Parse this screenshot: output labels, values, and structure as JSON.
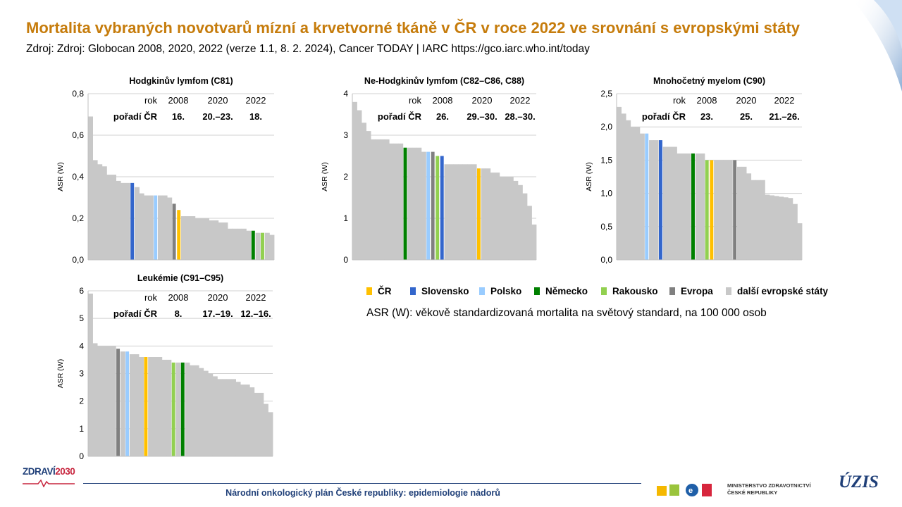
{
  "slide": {
    "title": "Mortalita vybraných novotvarů mízní a krvetvorné tkáně v ČR v roce 2022 ve srovnání s evropskými státy",
    "subtitle": "Zdroj: Zdroj: Globocan 2008, 2020, 2022 (verze 1.1, 8. 2. 2024), Cancer TODAY | IARC https://gco.iarc.who.int/today"
  },
  "colors": {
    "CZ": "#FFC000",
    "SK": "#3366CC",
    "PL": "#99CCFF",
    "DE": "#008000",
    "AT": "#92D050",
    "EU": "#808080",
    "other": "#C8C8C8",
    "title": "#C67C0C",
    "footer": "#1F3F78"
  },
  "legend": [
    {
      "key": "CZ",
      "label": "ČR"
    },
    {
      "key": "SK",
      "label": "Slovensko"
    },
    {
      "key": "PL",
      "label": "Polsko"
    },
    {
      "key": "DE",
      "label": "Německo"
    },
    {
      "key": "AT",
      "label": "Rakousko"
    },
    {
      "key": "EU",
      "label": "Evropa"
    },
    {
      "key": "other",
      "label": "další evropské státy"
    }
  ],
  "note": "ASR (W): věkově standardizovaná mortalita na světový standard, na 100 000 osob",
  "footer": {
    "text": "Národní onkologický plán České republiky: epidemiologie nádorů",
    "logo_zdravi_a": "ZDRAVÍ",
    "logo_zdravi_b": "2030",
    "ministry_line1": "MINISTERSTVO ZDRAVOTNICTVÍ",
    "ministry_line2": "ČESKÉ REPUBLIKY",
    "uzis": "ÚZIS"
  },
  "chart_data": [
    {
      "type": "bar",
      "title": "Hodgkinův lymfom (C81)",
      "ylabel": "ASR (W)",
      "ylim": [
        0,
        0.8
      ],
      "yticks": [
        "0,0",
        "0,2",
        "0,4",
        "0,6",
        "0,8"
      ],
      "rank_table": {
        "row_label": "rok",
        "rank_label": "pořadí ČR",
        "years": [
          "2008",
          "2020",
          "2022"
        ],
        "ranks": [
          "16.",
          "20.–23.",
          "18."
        ]
      },
      "categories": [
        "c01",
        "c02",
        "c03",
        "c04",
        "c05",
        "c06",
        "c07",
        "c08",
        "c09",
        "c10",
        "c11",
        "c12",
        "c13",
        "c14",
        "c15",
        "c16",
        "c17",
        "c18",
        "c19",
        "c20",
        "c21",
        "c22",
        "c23",
        "c24",
        "c25",
        "c26",
        "c27",
        "c28",
        "c29",
        "c30",
        "c31",
        "c32",
        "c33",
        "c34",
        "c35",
        "c36",
        "c37",
        "c38",
        "c39",
        "c40"
      ],
      "highlight": {
        "c10": "SK",
        "c15": "PL",
        "c19": "EU",
        "c20": "CZ",
        "c36": "DE",
        "c38": "AT"
      },
      "values": [
        0.69,
        0.48,
        0.46,
        0.45,
        0.41,
        0.41,
        0.38,
        0.37,
        0.37,
        0.37,
        0.35,
        0.32,
        0.31,
        0.31,
        0.31,
        0.31,
        0.31,
        0.3,
        0.27,
        0.24,
        0.21,
        0.21,
        0.21,
        0.2,
        0.2,
        0.2,
        0.19,
        0.19,
        0.18,
        0.18,
        0.15,
        0.15,
        0.15,
        0.15,
        0.14,
        0.14,
        0.13,
        0.13,
        0.13,
        0.12
      ]
    },
    {
      "type": "bar",
      "title": "Ne-Hodgkinův lymfom (C82–C86, C88)",
      "ylabel": "ASR (W)",
      "ylim": [
        0,
        4
      ],
      "yticks": [
        "0",
        "1",
        "2",
        "3",
        "4"
      ],
      "rank_table": {
        "row_label": "rok",
        "rank_label": "pořadí ČR",
        "years": [
          "2008",
          "2020",
          "2022"
        ],
        "ranks": [
          "26.",
          "29.–30.",
          "28.–30."
        ]
      },
      "categories": [
        "c01",
        "c02",
        "c03",
        "c04",
        "c05",
        "c06",
        "c07",
        "c08",
        "c09",
        "c10",
        "c11",
        "c12",
        "c13",
        "c14",
        "c15",
        "c16",
        "c17",
        "c18",
        "c19",
        "c20",
        "c21",
        "c22",
        "c23",
        "c24",
        "c25",
        "c26",
        "c27",
        "c28",
        "c29",
        "c30",
        "c31",
        "c32",
        "c33",
        "c34",
        "c35",
        "c36",
        "c37",
        "c38",
        "c39",
        "c40"
      ],
      "highlight": {
        "c12": "DE",
        "c17": "PL",
        "c18": "EU",
        "c19": "AT",
        "c20": "SK",
        "c28": "CZ"
      },
      "values": [
        3.8,
        3.6,
        3.3,
        3.1,
        2.9,
        2.9,
        2.9,
        2.9,
        2.8,
        2.8,
        2.8,
        2.7,
        2.7,
        2.7,
        2.7,
        2.6,
        2.6,
        2.6,
        2.5,
        2.5,
        2.3,
        2.3,
        2.3,
        2.3,
        2.3,
        2.3,
        2.3,
        2.2,
        2.2,
        2.2,
        2.1,
        2.1,
        2.0,
        2.0,
        2.0,
        1.9,
        1.8,
        1.6,
        1.3,
        0.85
      ]
    },
    {
      "type": "bar",
      "title": "Mnohočetný myelom (C90)",
      "ylabel": "ASR (W)",
      "ylim": [
        0,
        2.5
      ],
      "yticks": [
        "0,0",
        "0,5",
        "1,0",
        "1,5",
        "2,0",
        "2,5"
      ],
      "rank_table": {
        "row_label": "rok",
        "rank_label": "pořadí ČR",
        "years": [
          "2008",
          "2020",
          "2022"
        ],
        "ranks": [
          "23.",
          "25.",
          "21.–26."
        ]
      },
      "categories": [
        "c01",
        "c02",
        "c03",
        "c04",
        "c05",
        "c06",
        "c07",
        "c08",
        "c09",
        "c10",
        "c11",
        "c12",
        "c13",
        "c14",
        "c15",
        "c16",
        "c17",
        "c18",
        "c19",
        "c20",
        "c21",
        "c22",
        "c23",
        "c24",
        "c25",
        "c26",
        "c27",
        "c28",
        "c29",
        "c30",
        "c31",
        "c32",
        "c33",
        "c34",
        "c35",
        "c36",
        "c37",
        "c38",
        "c39",
        "c40"
      ],
      "highlight": {
        "c07": "PL",
        "c10": "SK",
        "c17": "DE",
        "c20": "AT",
        "c21": "CZ",
        "c26": "EU"
      },
      "values": [
        2.3,
        2.2,
        2.1,
        2.0,
        2.0,
        1.9,
        1.9,
        1.8,
        1.8,
        1.8,
        1.7,
        1.7,
        1.7,
        1.6,
        1.6,
        1.6,
        1.6,
        1.6,
        1.6,
        1.5,
        1.5,
        1.5,
        1.5,
        1.5,
        1.5,
        1.5,
        1.4,
        1.4,
        1.3,
        1.2,
        1.2,
        1.2,
        0.98,
        0.97,
        0.96,
        0.95,
        0.94,
        0.93,
        0.84,
        0.55
      ]
    },
    {
      "type": "bar",
      "title": "Leukémie (C91–C95)",
      "ylabel": "ASR (W)",
      "ylim": [
        0,
        6
      ],
      "yticks": [
        "0",
        "1",
        "2",
        "3",
        "4",
        "5",
        "6"
      ],
      "rank_table": {
        "row_label": "rok",
        "rank_label": "pořadí ČR",
        "years": [
          "2008",
          "2020",
          "2022"
        ],
        "ranks": [
          "8.",
          "17.–19.",
          "12.–16."
        ]
      },
      "categories": [
        "c01",
        "c02",
        "c03",
        "c04",
        "c05",
        "c06",
        "c07",
        "c08",
        "c09",
        "c10",
        "c11",
        "c12",
        "c13",
        "c14",
        "c15",
        "c16",
        "c17",
        "c18",
        "c19",
        "c20",
        "c21",
        "c22",
        "c23",
        "c24",
        "c25",
        "c26",
        "c27",
        "c28",
        "c29",
        "c30",
        "c31",
        "c32",
        "c33",
        "c34",
        "c35",
        "c36",
        "c37",
        "c38",
        "c39",
        "c40"
      ],
      "highlight": {
        "c07": "EU",
        "c09": "PL",
        "c13": "CZ",
        "c19": "AT",
        "c21": "DE"
      },
      "values": [
        5.9,
        4.1,
        4.0,
        4.0,
        4.0,
        4.0,
        3.9,
        3.8,
        3.8,
        3.7,
        3.7,
        3.6,
        3.6,
        3.6,
        3.6,
        3.6,
        3.5,
        3.5,
        3.4,
        3.4,
        3.4,
        3.4,
        3.3,
        3.3,
        3.2,
        3.1,
        3.0,
        2.9,
        2.8,
        2.8,
        2.8,
        2.8,
        2.7,
        2.6,
        2.6,
        2.5,
        2.3,
        2.3,
        1.9,
        1.6
      ]
    }
  ]
}
